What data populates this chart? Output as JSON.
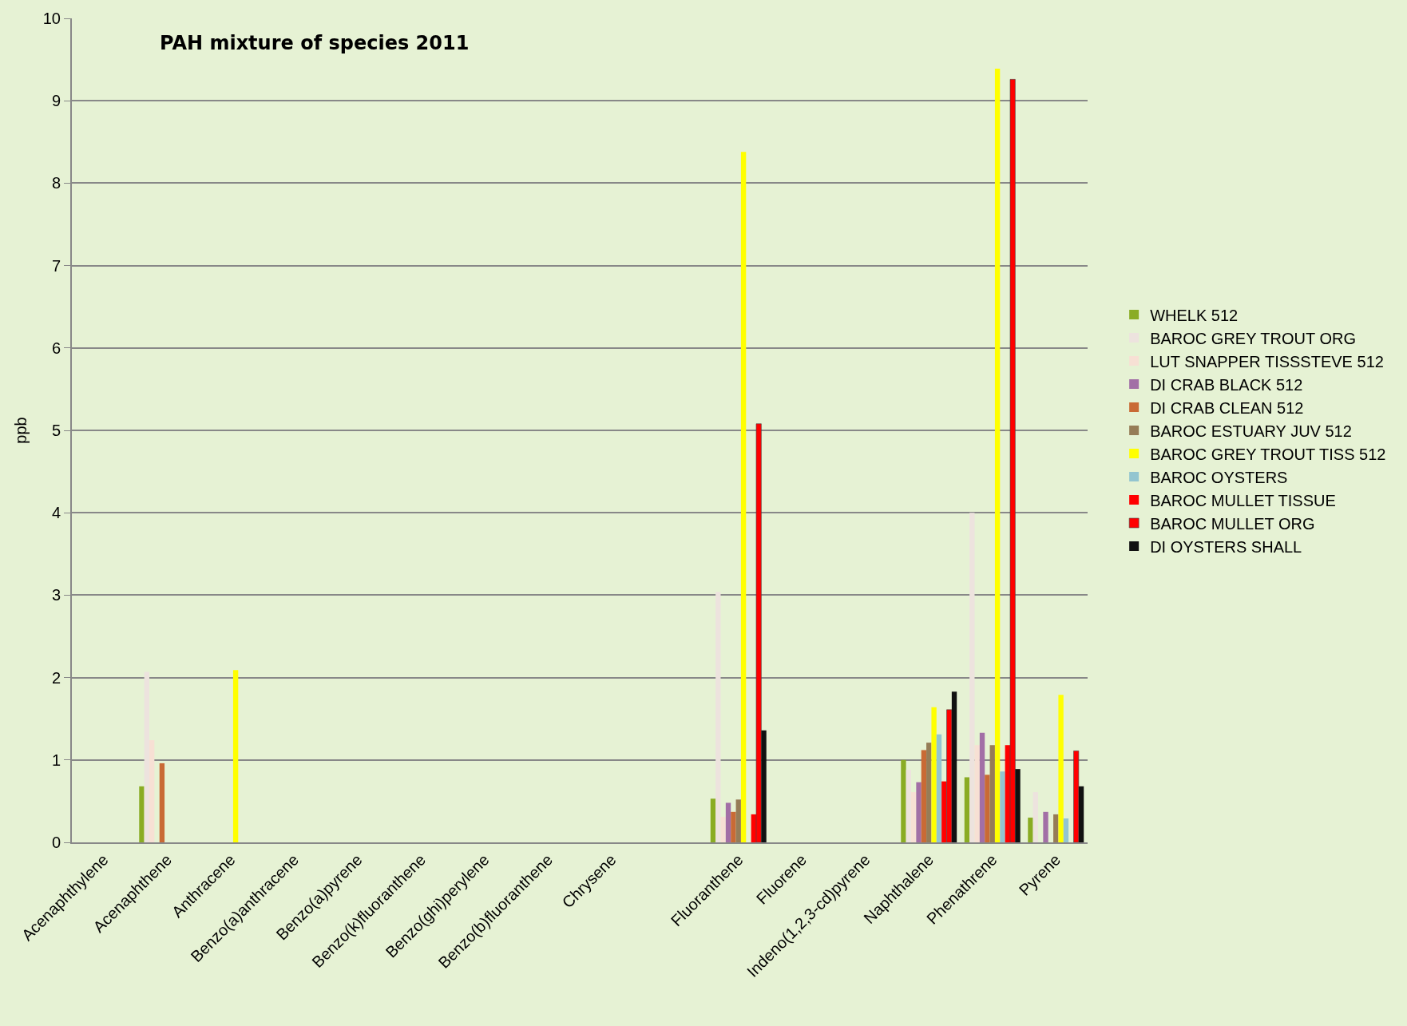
{
  "chart_data": {
    "type": "bar",
    "title": "PAH mixture of species 2011",
    "ylabel": "ppb",
    "categories": [
      "Acenaphthylene",
      "Acenaphthene",
      "Anthracene",
      "Benzo(a)anthracene",
      "Benzo(a)pyrene",
      "Benzo(k)fluoranthene",
      "Benzo(ghi)perylene",
      "Benzo(b)fluoranthene",
      "Chrysene",
      null,
      "Fluoranthene",
      "Fluorene",
      "Indeno(1,2,3-cd)pyrene",
      "Naphthalene",
      "Phenathrene",
      "Pyrene"
    ],
    "series": [
      {
        "name": "WHELK 512",
        "color": "#8aac24",
        "values": [
          null,
          0.68,
          null,
          null,
          null,
          null,
          null,
          null,
          null,
          null,
          0.53,
          null,
          null,
          1.0,
          0.79,
          0.3
        ]
      },
      {
        "name": "BAROC GREY TROUT ORG",
        "color": "#ede3de",
        "values": [
          null,
          2.07,
          null,
          null,
          null,
          null,
          null,
          null,
          null,
          null,
          3.04,
          null,
          null,
          0.88,
          4.0,
          0.61
        ]
      },
      {
        "name": "LUT SNAPPER TISSSTEVE 512",
        "color": "#f7e0d4",
        "values": [
          null,
          1.24,
          null,
          null,
          null,
          null,
          null,
          null,
          null,
          null,
          0.31,
          null,
          null,
          0.61,
          1.18,
          null
        ]
      },
      {
        "name": "DI CRAB BLACK 512",
        "color": "#a26fa6",
        "values": [
          null,
          null,
          null,
          null,
          null,
          null,
          null,
          null,
          null,
          null,
          0.48,
          null,
          null,
          0.73,
          1.33,
          0.37
        ]
      },
      {
        "name": "DI CRAB CLEAN 512",
        "color": "#c96a35",
        "values": [
          null,
          0.96,
          null,
          null,
          null,
          null,
          null,
          null,
          null,
          null,
          0.37,
          null,
          null,
          1.12,
          0.82,
          null
        ]
      },
      {
        "name": "BAROC ESTUARY JUV 512",
        "color": "#967c57",
        "values": [
          null,
          null,
          null,
          null,
          null,
          null,
          null,
          null,
          null,
          null,
          0.52,
          null,
          null,
          1.21,
          1.18,
          0.34
        ]
      },
      {
        "name": "BAROC GREY TROUT TISS 512",
        "color": "#ffff00",
        "values": [
          null,
          null,
          2.09,
          null,
          null,
          null,
          null,
          null,
          null,
          null,
          8.38,
          null,
          null,
          1.64,
          9.39,
          1.79
        ]
      },
      {
        "name": "BAROC OYSTERS",
        "color": "#93c5d0",
        "values": [
          null,
          null,
          null,
          null,
          null,
          null,
          null,
          null,
          null,
          null,
          null,
          null,
          null,
          1.31,
          0.86,
          0.29
        ]
      },
      {
        "name": "BAROC MULLET TISSUE",
        "color": "#ff0000",
        "values": [
          null,
          null,
          null,
          null,
          null,
          null,
          null,
          null,
          null,
          null,
          0.34,
          null,
          null,
          0.74,
          1.18,
          null
        ]
      },
      {
        "name": "BAROC MULLET ORG",
        "color": "#ff0000",
        "values": [
          null,
          null,
          null,
          null,
          null,
          null,
          null,
          null,
          null,
          null,
          5.08,
          null,
          null,
          1.61,
          9.26,
          1.11
        ]
      },
      {
        "name": "DI OYSTERS SHALL",
        "color": "#111111",
        "values": [
          null,
          null,
          null,
          null,
          null,
          null,
          null,
          null,
          null,
          null,
          1.36,
          null,
          null,
          1.83,
          0.89,
          0.68
        ]
      }
    ],
    "ylim": [
      0,
      10
    ],
    "yticks": [
      0,
      1,
      2,
      3,
      4,
      5,
      6,
      7,
      8,
      9,
      10
    ],
    "grid": "y",
    "legend": "right"
  }
}
